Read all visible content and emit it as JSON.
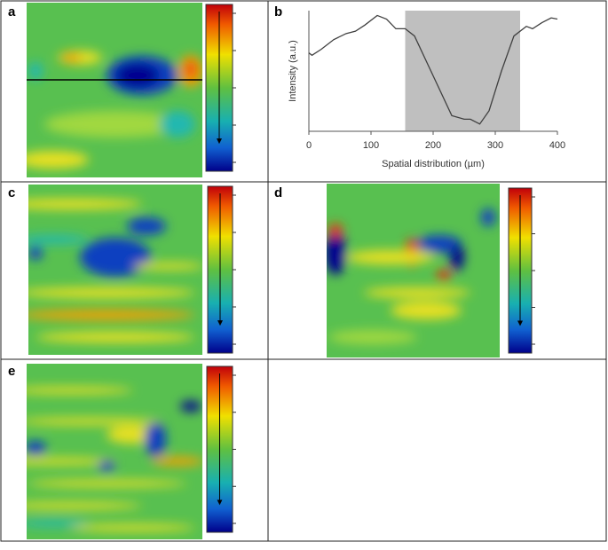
{
  "panel_labels": [
    "a",
    "b",
    "c",
    "d",
    "e"
  ],
  "chart_data": {
    "type": "line",
    "xlabel": "Spatial distribution (µm)",
    "ylabel": "Intensity (a.u.)",
    "x": [
      0,
      5,
      20,
      40,
      60,
      75,
      90,
      110,
      125,
      140,
      155,
      170,
      190,
      210,
      230,
      250,
      260,
      275,
      290,
      310,
      330,
      350,
      360,
      375,
      390,
      400
    ],
    "values": [
      0.65,
      0.63,
      0.68,
      0.76,
      0.81,
      0.83,
      0.88,
      0.96,
      0.93,
      0.85,
      0.85,
      0.79,
      0.57,
      0.35,
      0.13,
      0.1,
      0.1,
      0.06,
      0.17,
      0.5,
      0.79,
      0.87,
      0.85,
      0.9,
      0.94,
      0.93
    ],
    "color": "#404040",
    "xlim": [
      0,
      400
    ],
    "xticks": [
      0,
      100,
      200,
      300,
      400
    ],
    "ylim": [
      0,
      1
    ],
    "shade_x": [
      155,
      340
    ],
    "shade_color": "#bfbfbf"
  }
}
